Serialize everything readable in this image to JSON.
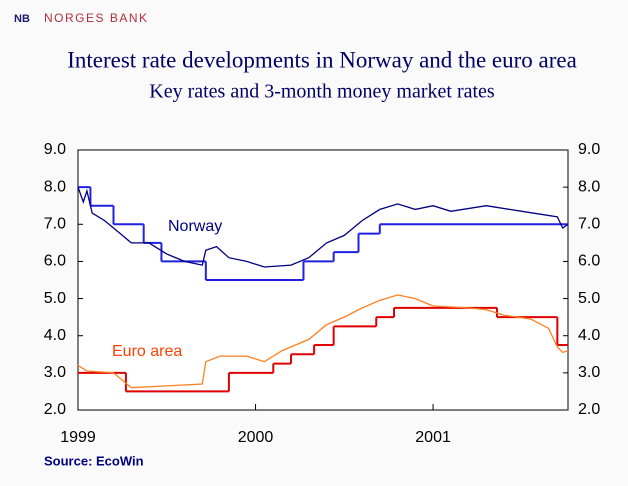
{
  "header": {
    "logo": "NB",
    "bank": "NORGES BANK"
  },
  "chart_data": {
    "type": "line",
    "title": "Interest rate developments in Norway and the euro area",
    "subtitle": "Key rates and 3-month money market rates",
    "source": "Source: EcoWin",
    "xlim": [
      1999,
      2001.76
    ],
    "xticks": [
      1999,
      2000,
      2001
    ],
    "ylim": [
      2,
      9
    ],
    "yticks": [
      {
        "value": 2,
        "label": "2.0"
      },
      {
        "value": 3,
        "label": "3.0"
      },
      {
        "value": 4,
        "label": "4.0"
      },
      {
        "value": 5,
        "label": "5.0"
      },
      {
        "value": 6,
        "label": "6.0"
      },
      {
        "value": 7,
        "label": "7.0"
      },
      {
        "value": 8,
        "label": "8.0"
      },
      {
        "value": 9,
        "label": "9.0"
      }
    ],
    "y2lim": [
      2,
      9
    ],
    "y2ticks": [
      {
        "value": 2,
        "label": "2.0"
      },
      {
        "value": 3,
        "label": "3.0"
      },
      {
        "value": 4,
        "label": "4.0"
      },
      {
        "value": 5,
        "label": "5.0"
      },
      {
        "value": 6,
        "label": "6.0"
      },
      {
        "value": 7,
        "label": "7.0"
      },
      {
        "value": 8,
        "label": "8.0"
      },
      {
        "value": 9,
        "label": "9.0"
      }
    ],
    "annotations": [
      {
        "text": "Norway",
        "color": "#000080"
      },
      {
        "text": "Euro area",
        "color": "#ff4000"
      }
    ],
    "series": [
      {
        "style": "step",
        "color": "#2020e0",
        "x": [
          1999.0,
          1999.07,
          1999.2,
          1999.37,
          1999.47,
          1999.72,
          2000.27,
          2000.44,
          2000.58,
          2000.7
        ],
        "values": [
          8.0,
          7.5,
          7.0,
          6.5,
          6.0,
          5.5,
          6.0,
          6.25,
          6.75,
          7.0
        ]
      },
      {
        "style": "line",
        "color": "#000080",
        "x": [
          1999.0,
          1999.03,
          1999.05,
          1999.08,
          1999.15,
          1999.25,
          1999.3,
          1999.4,
          1999.5,
          1999.6,
          1999.7,
          1999.72,
          1999.78,
          1999.85,
          1999.95,
          2000.05,
          2000.2,
          2000.3,
          2000.4,
          2000.5,
          2000.6,
          2000.7,
          2000.8,
          2000.9,
          2001.0,
          2001.1,
          2001.3,
          2001.5,
          2001.7,
          2001.73,
          2001.76
        ],
        "values": [
          8.0,
          7.6,
          7.9,
          7.3,
          7.1,
          6.7,
          6.5,
          6.5,
          6.2,
          6.0,
          5.9,
          6.3,
          6.4,
          6.1,
          6.0,
          5.85,
          5.9,
          6.1,
          6.5,
          6.7,
          7.1,
          7.4,
          7.55,
          7.4,
          7.5,
          7.35,
          7.5,
          7.35,
          7.2,
          6.9,
          7.0
        ]
      },
      {
        "style": "step",
        "color": "#e00000",
        "x": [
          1999.0,
          1999.27,
          1999.85,
          2000.1,
          2000.2,
          2000.33,
          2000.44,
          2000.68,
          2000.78,
          2001.36,
          2001.7
        ],
        "values": [
          3.0,
          2.5,
          3.0,
          3.25,
          3.5,
          3.75,
          4.25,
          4.5,
          4.75,
          4.5,
          3.75
        ]
      },
      {
        "style": "line",
        "color": "#ff8020",
        "x": [
          1999.0,
          1999.05,
          1999.2,
          1999.3,
          1999.5,
          1999.7,
          1999.72,
          1999.8,
          1999.95,
          2000.05,
          2000.15,
          2000.3,
          2000.4,
          2000.5,
          2000.6,
          2000.7,
          2000.8,
          2000.9,
          2001.0,
          2001.2,
          2001.3,
          2001.4,
          2001.55,
          2001.65,
          2001.7,
          2001.73,
          2001.76
        ],
        "values": [
          3.2,
          3.05,
          3.0,
          2.6,
          2.65,
          2.7,
          3.3,
          3.45,
          3.45,
          3.3,
          3.6,
          3.9,
          4.3,
          4.5,
          4.75,
          4.95,
          5.1,
          5.0,
          4.8,
          4.75,
          4.7,
          4.55,
          4.45,
          4.2,
          3.7,
          3.55,
          3.6
        ]
      }
    ]
  }
}
